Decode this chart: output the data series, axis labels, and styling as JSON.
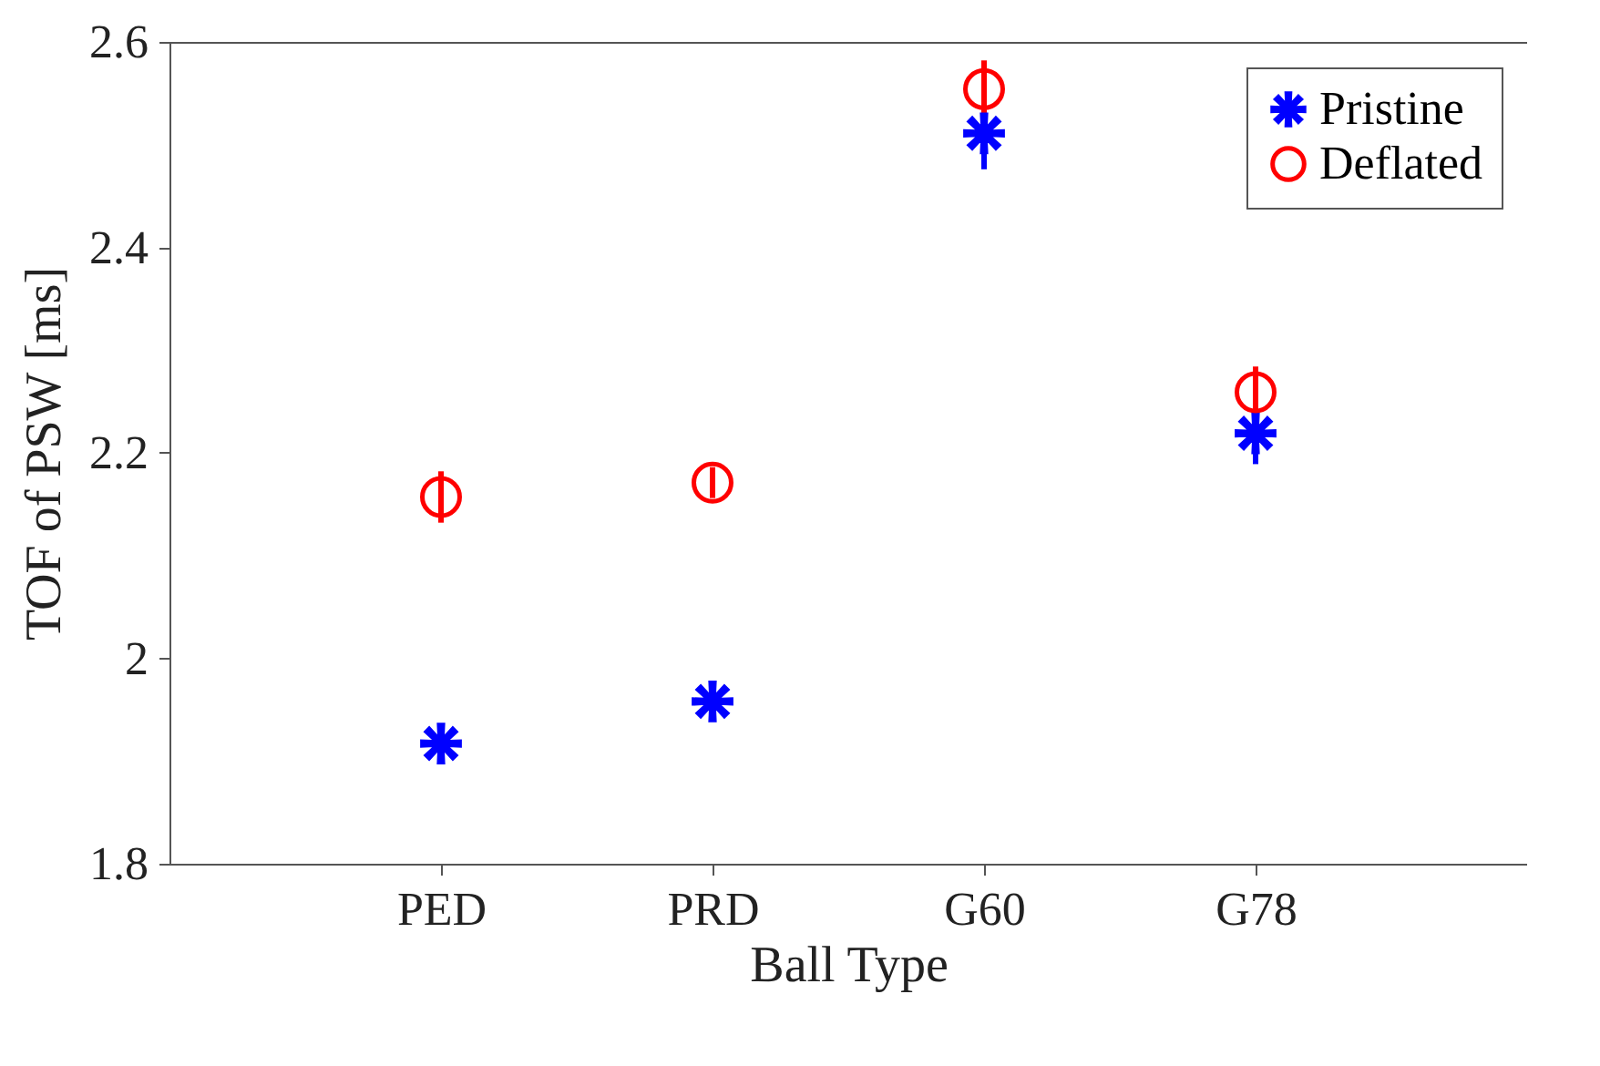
{
  "chart_data": {
    "type": "scatter",
    "xlabel": "Ball Type",
    "ylabel": "TOF of PSW [ms]",
    "categories": [
      "PED",
      "PRD",
      "G60",
      "G78"
    ],
    "ylim": [
      1.8,
      2.6
    ],
    "yticks": [
      1.8,
      2,
      2.2,
      2.4,
      2.6
    ],
    "grid": false,
    "legend": "top right",
    "series": [
      {
        "name": "Pristine",
        "color": "#0000ff",
        "marker": "cross",
        "values": [
          1.917,
          1.958,
          2.511,
          2.219
        ],
        "errors": [
          0.01,
          0.01,
          0.035,
          0.03
        ]
      },
      {
        "name": "Deflated",
        "color": "#ff0000",
        "marker": "circle",
        "values": [
          2.157,
          2.171,
          2.554,
          2.259
        ],
        "errors": [
          0.025,
          0.015,
          0.028,
          0.025
        ]
      }
    ]
  }
}
